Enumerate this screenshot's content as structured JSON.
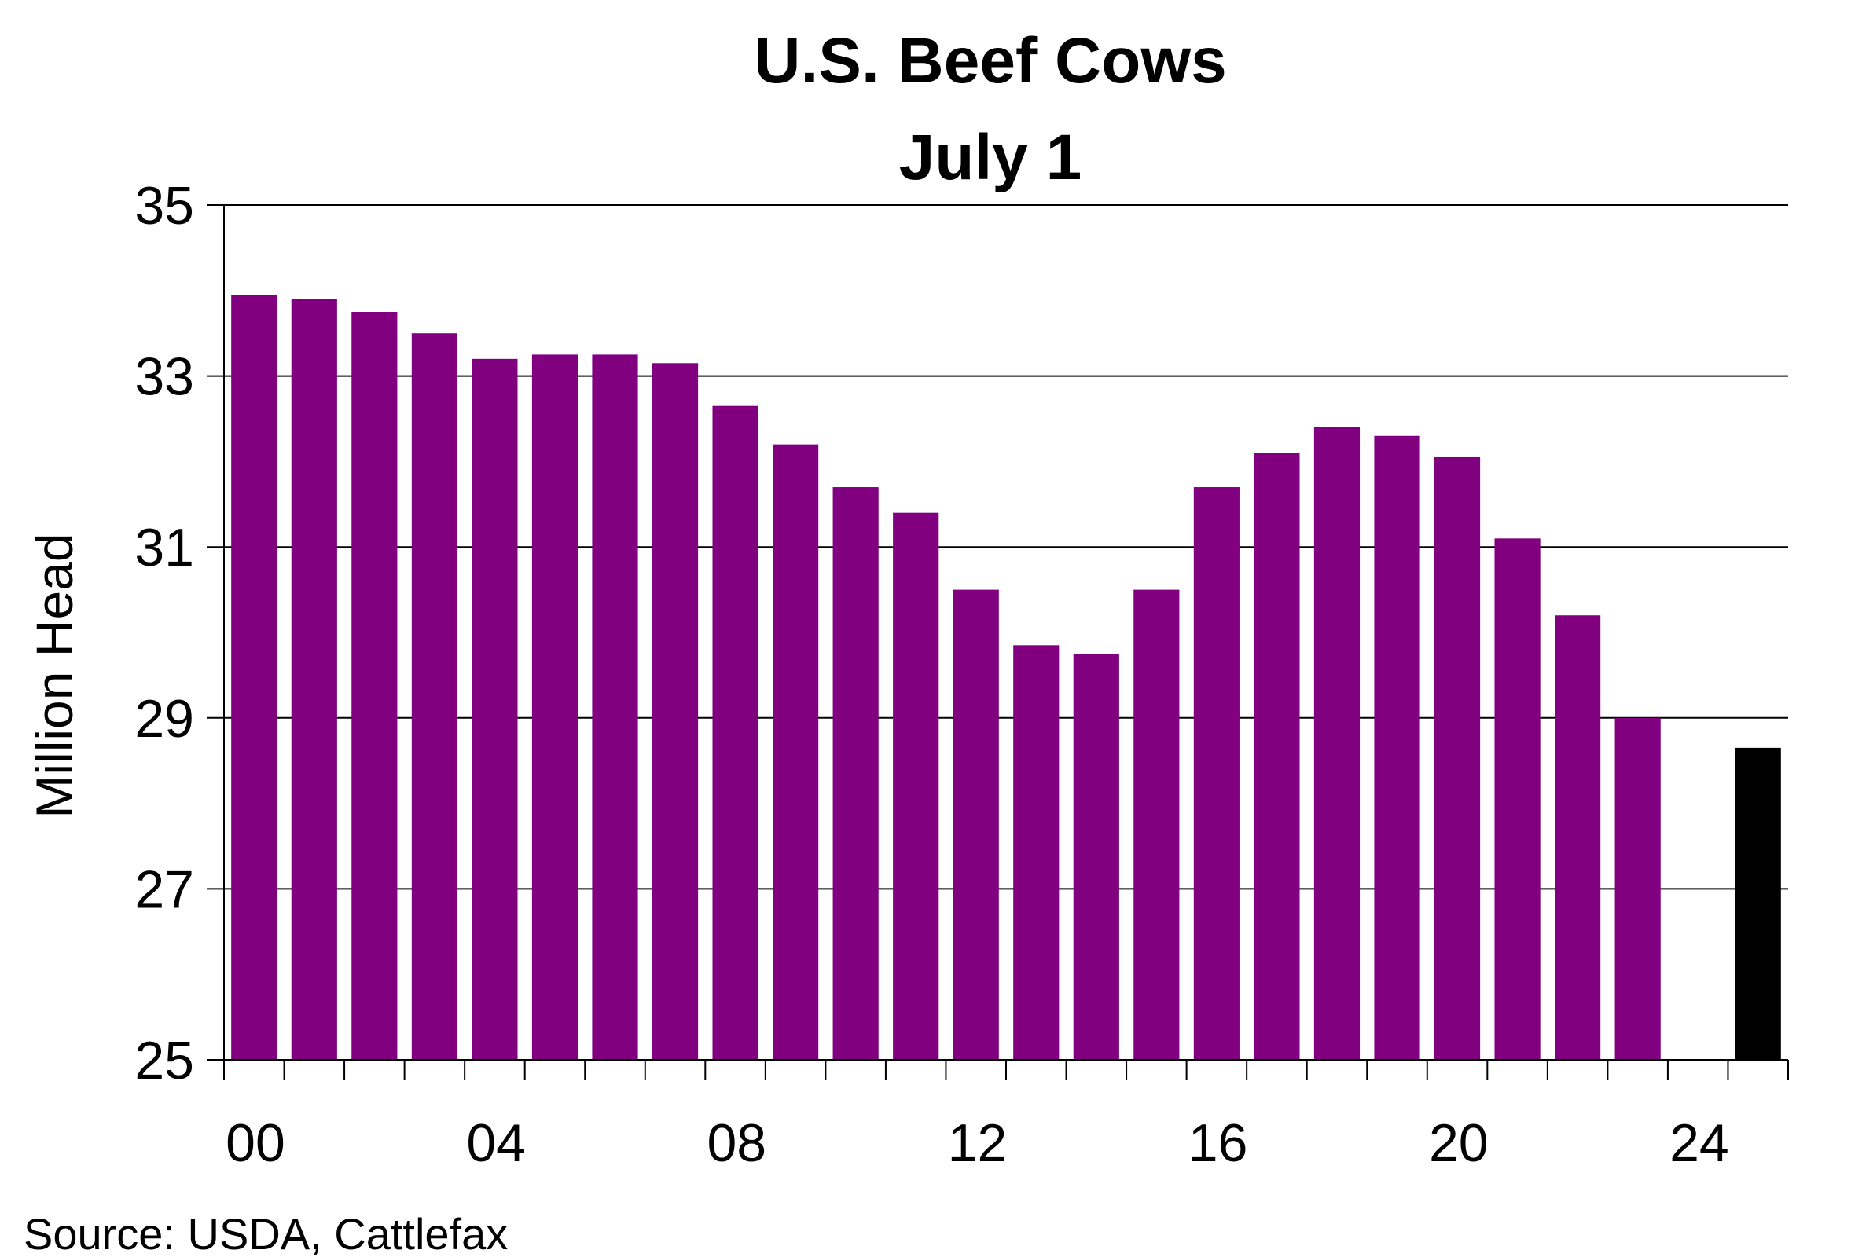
{
  "chart_data": {
    "type": "bar",
    "title": "U.S. Beef Cows",
    "subtitle": "July 1",
    "ylabel": "Million Head",
    "xlabel": "",
    "ylim": [
      25,
      35
    ],
    "yticks": [
      "25",
      "27",
      "29",
      "31",
      "33",
      "35"
    ],
    "xtick_labels": [
      "00",
      "04",
      "08",
      "12",
      "16",
      "20",
      "24"
    ],
    "grid": "horizontal",
    "categories": [
      "00",
      "01",
      "02",
      "03",
      "04",
      "05",
      "06",
      "07",
      "08",
      "09",
      "10",
      "11",
      "12",
      "13",
      "14",
      "15",
      "16",
      "17",
      "18",
      "19",
      "20",
      "21",
      "22",
      "23",
      "24",
      "25"
    ],
    "values": [
      33.95,
      33.9,
      33.75,
      33.5,
      33.2,
      33.25,
      33.25,
      33.15,
      32.65,
      32.2,
      31.7,
      31.4,
      30.5,
      29.85,
      29.75,
      30.5,
      31.7,
      32.1,
      32.4,
      32.3,
      32.05,
      31.1,
      30.2,
      29.0,
      null,
      28.65
    ],
    "bar_colors": [
      "#800080",
      "#800080",
      "#800080",
      "#800080",
      "#800080",
      "#800080",
      "#800080",
      "#800080",
      "#800080",
      "#800080",
      "#800080",
      "#800080",
      "#800080",
      "#800080",
      "#800080",
      "#800080",
      "#800080",
      "#800080",
      "#800080",
      "#800080",
      "#800080",
      "#800080",
      "#800080",
      "#800080",
      "#800080",
      "#000000"
    ],
    "source": "Source:  USDA, Cattlefax"
  }
}
